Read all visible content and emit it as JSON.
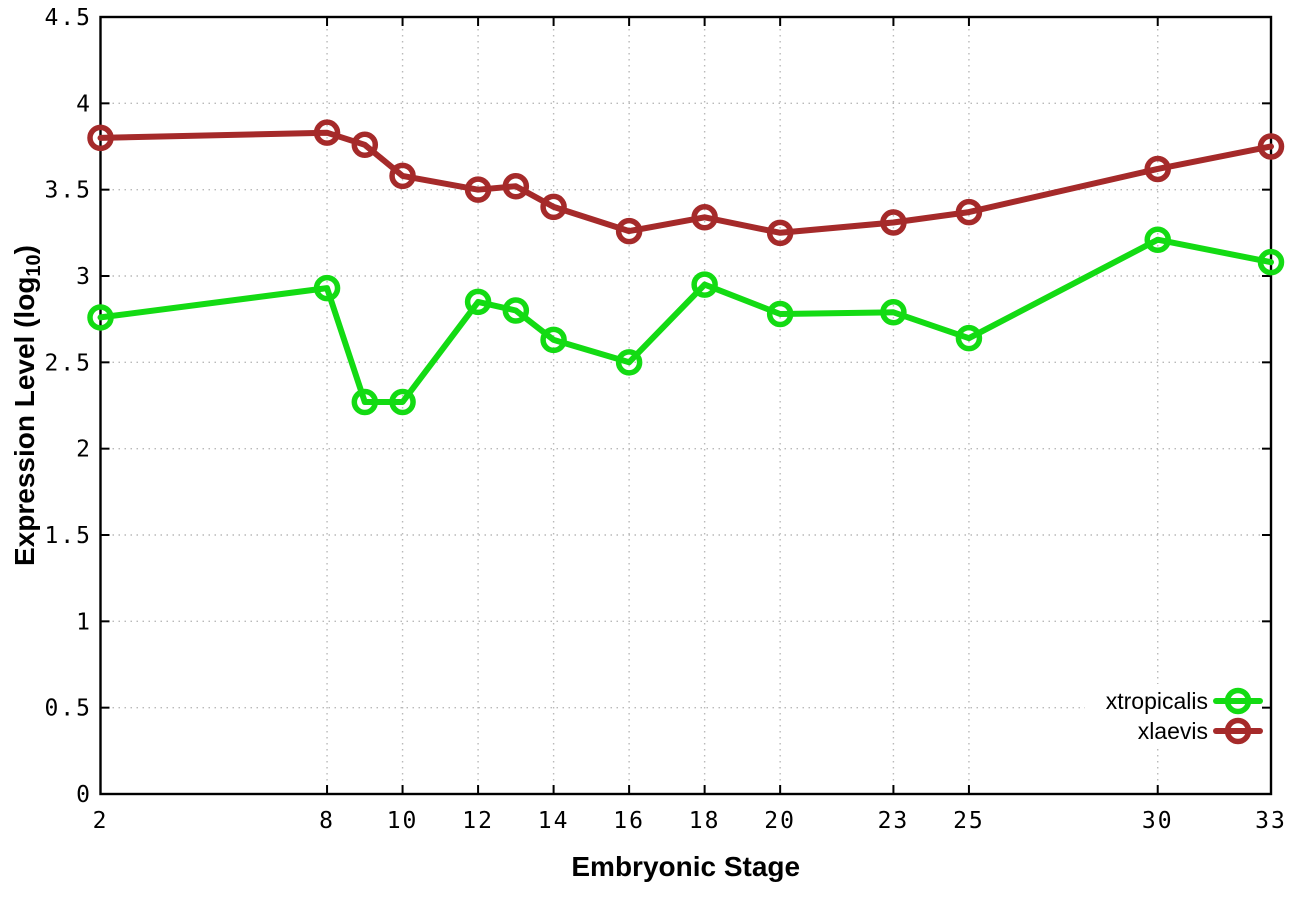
{
  "chart_data": {
    "type": "line",
    "title": "",
    "xlabel": "Embryonic Stage",
    "ylabel": "Expression Level (log10)",
    "ylabel_parts": [
      {
        "text": "Expression Level (log",
        "sub": false
      },
      {
        "text": "10",
        "sub": true
      },
      {
        "text": ")",
        "sub": false
      }
    ],
    "x": [
      2,
      8,
      9,
      10,
      12,
      13,
      14,
      16,
      18,
      20,
      23,
      25,
      30,
      33
    ],
    "series": [
      {
        "name": "xtropicalis",
        "color": "#13db13",
        "values": [
          2.76,
          2.93,
          2.27,
          2.27,
          2.85,
          2.8,
          2.63,
          2.5,
          2.95,
          2.78,
          2.79,
          2.64,
          3.21,
          3.08
        ]
      },
      {
        "name": "xlaevis",
        "color": "#a52a2a",
        "values": [
          3.8,
          3.83,
          3.76,
          3.58,
          3.5,
          3.52,
          3.4,
          3.26,
          3.34,
          3.25,
          3.31,
          3.37,
          3.62,
          3.75
        ]
      }
    ],
    "xlim": [
      2,
      33
    ],
    "ylim": [
      0,
      4.5
    ],
    "x_ticks": [
      2,
      8,
      10,
      12,
      14,
      16,
      18,
      20,
      23,
      25,
      30,
      33
    ],
    "x_tick_labels": [
      "2",
      "8",
      "10",
      "12",
      "14",
      "16",
      "18",
      "20",
      "23",
      "25",
      "30",
      "33"
    ],
    "y_ticks": [
      0,
      0.5,
      1,
      1.5,
      2,
      2.5,
      3,
      3.5,
      4,
      4.5
    ],
    "y_tick_labels": [
      "0",
      "0.5",
      "1",
      "1.5",
      "2",
      "2.5",
      "3",
      "3.5",
      "4",
      "4.5"
    ],
    "grid": "dotted",
    "legend_position": "inside-bottom-right",
    "legend": [
      "xtropicalis",
      "xlaevis"
    ],
    "colors": {
      "xtropicalis": "#13db13",
      "xlaevis": "#a52a2a",
      "axis": "#000000",
      "grid": "#b9b9b9",
      "background": "#ffffff",
      "text": "#000000"
    }
  }
}
